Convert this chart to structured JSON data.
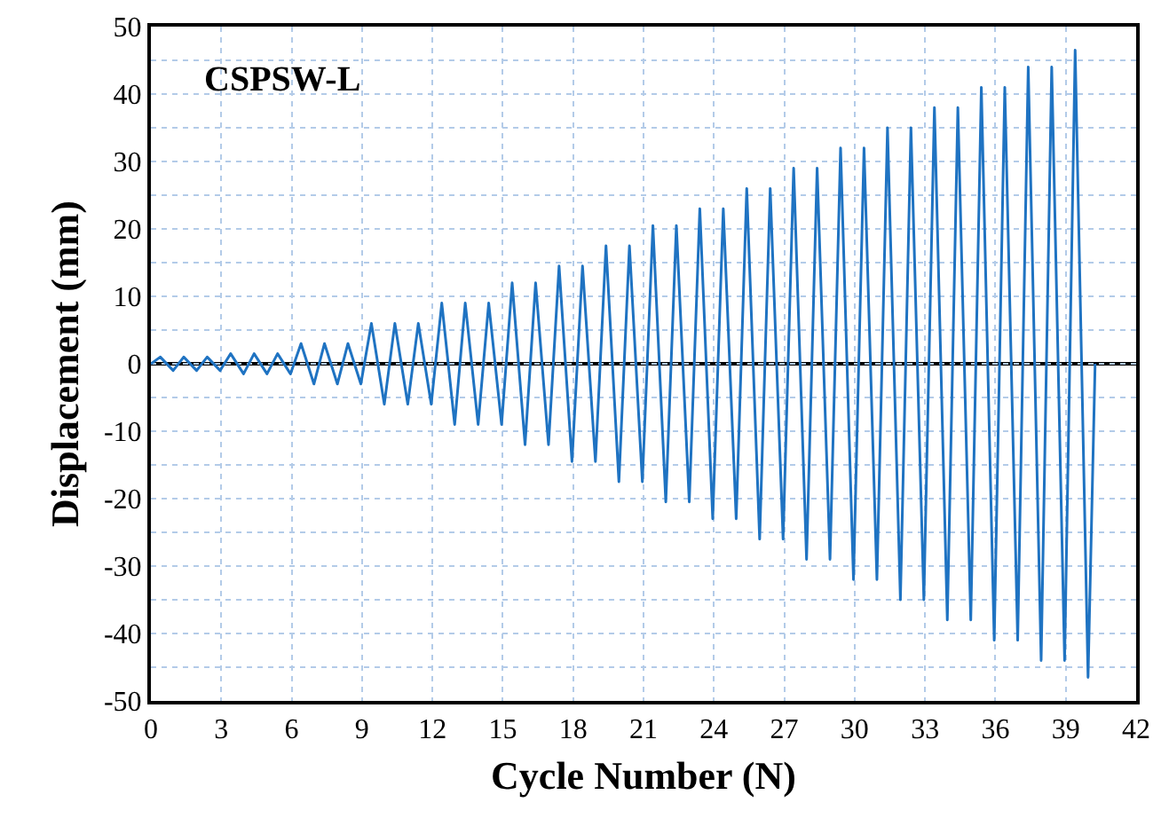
{
  "chart_data": {
    "type": "line",
    "xlabel": "Cycle Number (N)",
    "ylabel": "Displacement (mm)",
    "annotations": [
      "CSPSW-L"
    ],
    "x": [
      0,
      0.4,
      0.95,
      1.4,
      1.95,
      2.4,
      2.95,
      3.4,
      3.95,
      4.4,
      4.95,
      5.4,
      5.95,
      6.4,
      6.95,
      7.4,
      7.95,
      8.4,
      8.95,
      9.4,
      9.95,
      10.4,
      10.95,
      11.4,
      11.95,
      12.4,
      12.95,
      13.4,
      13.95,
      14.4,
      14.95,
      15.4,
      15.95,
      16.4,
      16.95,
      17.4,
      17.95,
      18.4,
      18.95,
      19.4,
      19.95,
      20.4,
      20.95,
      21.4,
      21.95,
      22.4,
      22.95,
      23.4,
      23.95,
      24.4,
      24.95,
      25.4,
      25.95,
      26.4,
      26.95,
      27.4,
      27.95,
      28.4,
      28.95,
      29.4,
      29.95,
      30.4,
      30.95,
      31.4,
      31.95,
      32.4,
      32.95,
      33.4,
      33.95,
      34.4,
      34.95,
      35.4,
      35.95,
      36.4,
      36.95,
      37.4,
      37.95,
      38.4,
      38.95,
      39.4,
      39.95,
      40.25
    ],
    "series": [
      {
        "color": "#1f73c2",
        "values": [
          0,
          1,
          -1,
          1,
          -1,
          1,
          -1,
          1.5,
          -1.5,
          1.5,
          -1.5,
          1.5,
          -1.5,
          3,
          -3,
          3,
          -3,
          3,
          -3,
          6,
          -6,
          6,
          -6,
          6,
          -6,
          9,
          -9,
          9,
          -9,
          9,
          -9,
          12,
          -12,
          12,
          -12,
          14.5,
          -14.5,
          14.5,
          -14.5,
          17.5,
          -17.5,
          17.5,
          -17.5,
          20.5,
          -20.5,
          20.5,
          -20.5,
          23,
          -23,
          23,
          -23,
          26,
          -26,
          26,
          -26,
          29,
          -29,
          29,
          -29,
          32,
          -32,
          32,
          -32,
          35,
          -35,
          35,
          -35,
          38,
          -38,
          38,
          -38,
          41,
          -41,
          41,
          -41,
          44,
          -44,
          44,
          -44,
          46.5,
          -46.5,
          0
        ]
      }
    ],
    "xlim": [
      0,
      42
    ],
    "xticks": [
      0,
      3,
      6,
      9,
      12,
      15,
      18,
      21,
      24,
      27,
      30,
      33,
      36,
      39,
      42
    ],
    "ylim": [
      -50,
      50
    ],
    "yticks": [
      -50,
      {
        "value": -45,
        "label": null
      },
      -40,
      {
        "value": -35,
        "label": null
      },
      -30,
      {
        "value": -25,
        "label": null
      },
      -20,
      {
        "value": -15,
        "label": null
      },
      -10,
      {
        "value": -5,
        "label": null
      },
      0,
      {
        "value": 5,
        "label": null
      },
      10,
      {
        "value": 15,
        "label": null
      },
      20,
      {
        "value": 25,
        "label": null
      },
      30,
      {
        "value": 35,
        "label": null
      },
      40,
      {
        "value": 45,
        "label": null
      },
      50
    ],
    "ref_lines": [
      {
        "axis": "y",
        "value": 0,
        "color": "#000000",
        "line_style": "solid"
      }
    ],
    "grid": true,
    "marker": "none",
    "line_style": "solid"
  }
}
